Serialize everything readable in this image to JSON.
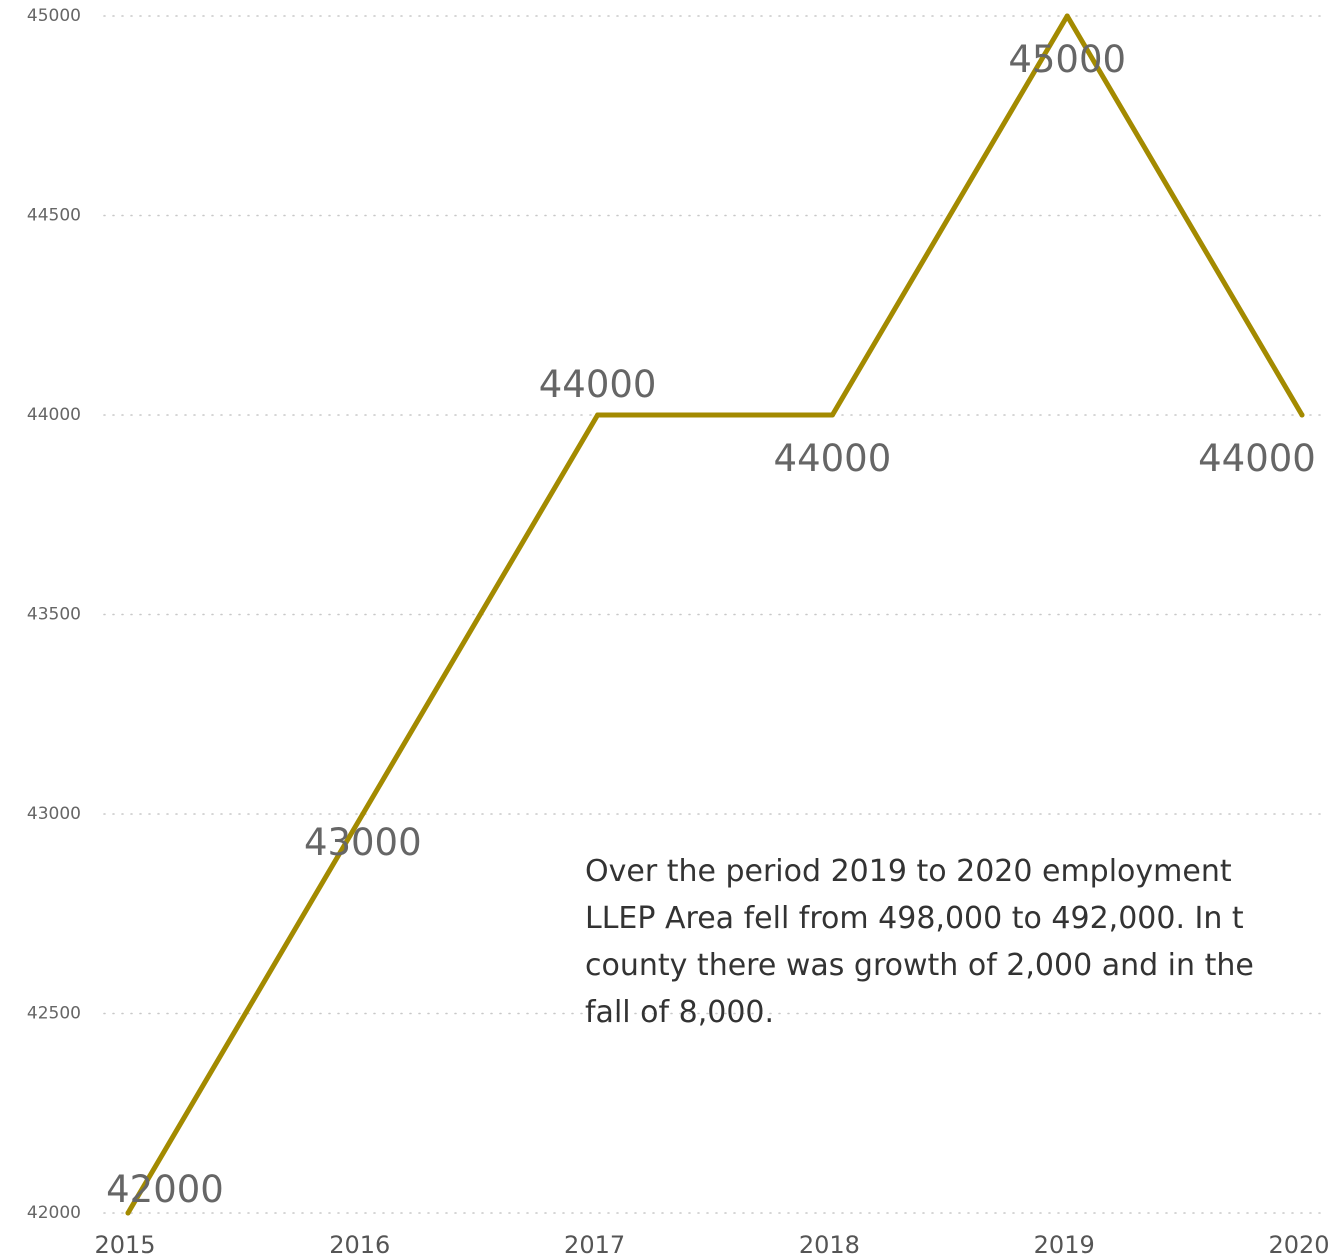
{
  "chart_data": {
    "type": "line",
    "x": [
      "2015",
      "2016",
      "2017",
      "2018",
      "2019",
      "2020"
    ],
    "series": [
      {
        "values": [
          42000,
          43000,
          44000,
          44000,
          45000,
          44000
        ]
      }
    ],
    "data_labels": [
      "42000",
      "43000",
      "44000",
      "44000",
      "45000",
      "44000"
    ],
    "y_ticks": [
      "42000",
      "42500",
      "43000",
      "43500",
      "44000",
      "44500",
      "45000"
    ],
    "ylim": [
      42000,
      45000
    ],
    "grid": true,
    "line_color": "#A38A00",
    "title": "",
    "xlabel": "",
    "ylabel": ""
  },
  "annotation": {
    "text": "Over the period 2019 to 2020 employment\nLLEP Area fell from 498,000 to 492,000.  In t\ncounty there was growth of 2,000 and in the\nfall of 8,000."
  }
}
